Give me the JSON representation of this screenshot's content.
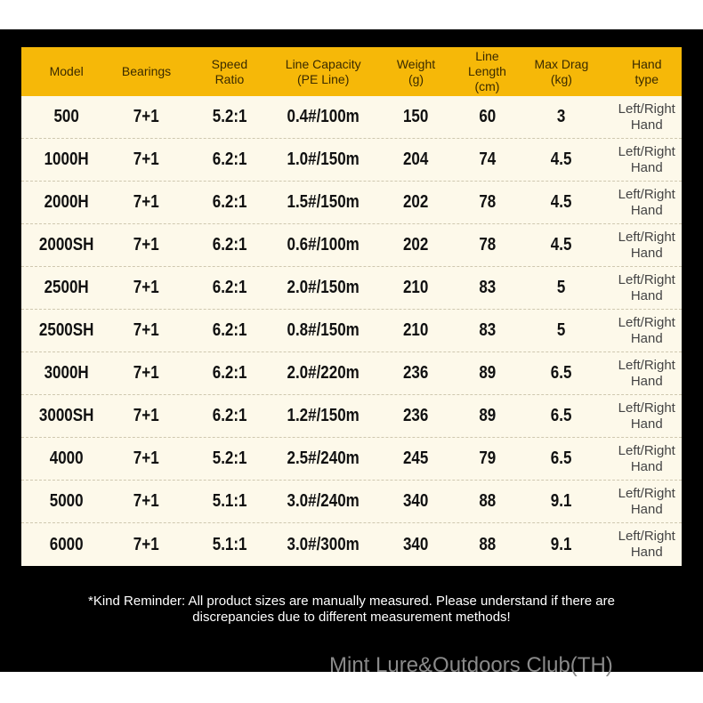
{
  "table": {
    "header": [
      [
        "Model"
      ],
      [
        "Bearings"
      ],
      [
        "Speed",
        "Ratio"
      ],
      [
        "Line Capacity",
        "(PE Line)"
      ],
      [
        "Weight",
        "(g)"
      ],
      [
        "Line Length",
        "(cm)"
      ],
      [
        "Max Drag",
        "(kg)"
      ],
      [
        "Hand",
        "type"
      ]
    ],
    "rows": [
      [
        "500",
        "7+1",
        "5.2:1",
        "0.4#/100m",
        "150",
        "60",
        "3",
        [
          "Left/Right",
          "Hand"
        ]
      ],
      [
        "1000H",
        "7+1",
        "6.2:1",
        "1.0#/150m",
        "204",
        "74",
        "4.5",
        [
          "Left/Right",
          "Hand"
        ]
      ],
      [
        "2000H",
        "7+1",
        "6.2:1",
        "1.5#/150m",
        "202",
        "78",
        "4.5",
        [
          "Left/Right",
          "Hand"
        ]
      ],
      [
        "2000SH",
        "7+1",
        "6.2:1",
        "0.6#/100m",
        "202",
        "78",
        "4.5",
        [
          "Left/Right",
          "Hand"
        ]
      ],
      [
        "2500H",
        "7+1",
        "6.2:1",
        "2.0#/150m",
        "210",
        "83",
        "5",
        [
          "Left/Right",
          "Hand"
        ]
      ],
      [
        "2500SH",
        "7+1",
        "6.2:1",
        "0.8#/150m",
        "210",
        "83",
        "5",
        [
          "Left/Right",
          "Hand"
        ]
      ],
      [
        "3000H",
        "7+1",
        "6.2:1",
        "2.0#/220m",
        "236",
        "89",
        "6.5",
        [
          "Left/Right",
          "Hand"
        ]
      ],
      [
        "3000SH",
        "7+1",
        "6.2:1",
        "1.2#/150m",
        "236",
        "89",
        "6.5",
        [
          "Left/Right",
          "Hand"
        ]
      ],
      [
        "4000",
        "7+1",
        "5.2:1",
        "2.5#/240m",
        "245",
        "79",
        "6.5",
        [
          "Left/Right",
          "Hand"
        ]
      ],
      [
        "5000",
        "7+1",
        "5.1:1",
        "3.0#/240m",
        "340",
        "88",
        "9.1",
        [
          "Left/Right",
          "Hand"
        ]
      ],
      [
        "6000",
        "7+1",
        "5.1:1",
        "3.0#/300m",
        "340",
        "88",
        "9.1",
        [
          "Left/Right",
          "Hand"
        ]
      ]
    ]
  },
  "reminder": "*Kind Reminder: All product sizes are manually measured. Please understand if there are discrepancies due to different measurement methods!",
  "watermark": "Mint Lure&Outdoors Club(TH)"
}
